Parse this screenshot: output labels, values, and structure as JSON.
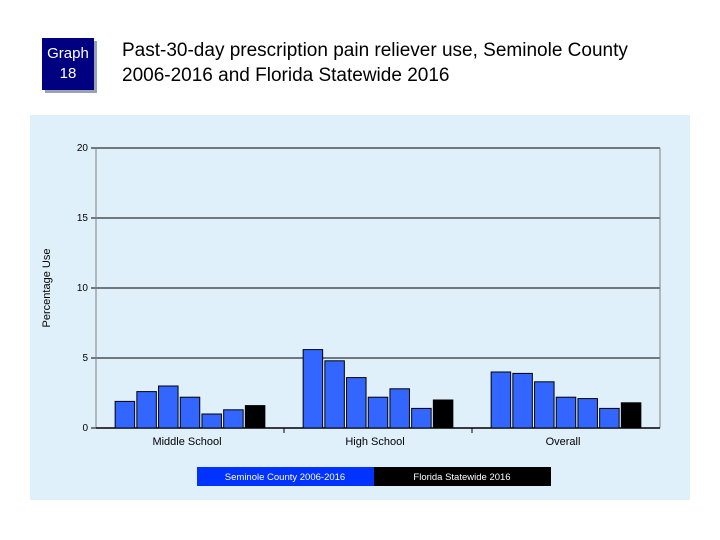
{
  "badge": {
    "line1": "Graph",
    "line2": "18"
  },
  "header": {
    "title_line1": "Past-30-day prescription pain reliever use, Seminole County",
    "title_line2": "2006-2016 and Florida Statewide 2016"
  },
  "colors": {
    "panel_bg": "#dff0fb",
    "county_bar": "#3366ff",
    "state_bar": "#000000",
    "badge_bg": "#000080",
    "county_legend_bg": "#0033ff"
  },
  "chart_data": {
    "type": "bar",
    "title": "Past-30-day prescription pain reliever use, Seminole County 2006-2016 and Florida Statewide 2016",
    "xlabel": "",
    "ylabel": "Percentage Use",
    "ylim": [
      0,
      20
    ],
    "yticks": [
      "0",
      "5",
      "10",
      "15",
      "20"
    ],
    "grid": true,
    "legend_position": "bottom",
    "categories": [
      "Middle School",
      "High School",
      "Overall"
    ],
    "series": [
      {
        "name": "Seminole County 2006-2016",
        "values": [
          [
            1.9,
            2.6,
            3.0,
            2.2,
            1.0,
            1.3
          ],
          [
            5.6,
            4.8,
            3.6,
            2.2,
            2.8,
            1.4
          ],
          [
            4.0,
            3.9,
            3.3,
            2.2,
            2.1,
            1.4
          ]
        ]
      },
      {
        "name": "Florida Statewide 2016",
        "values": [
          1.6,
          2.0,
          1.8
        ]
      }
    ]
  }
}
